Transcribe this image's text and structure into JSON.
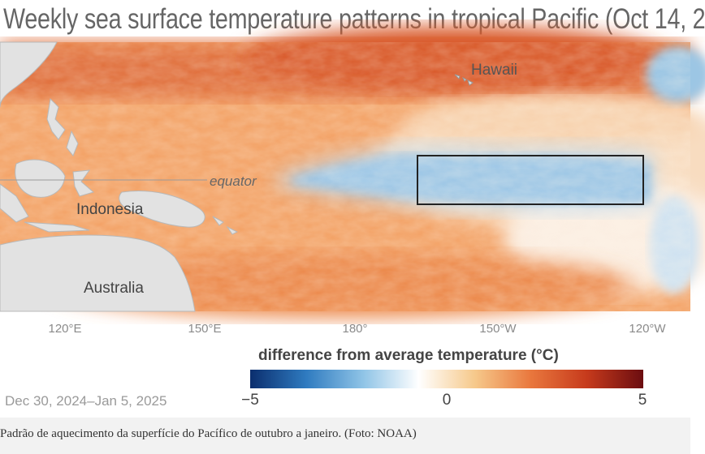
{
  "title": "Weekly sea surface temperature patterns in tropical Pacific (Oct 14, 2",
  "map": {
    "labels": {
      "hawaii": "Hawaii",
      "equator": "equator",
      "indonesia": "Indonesia",
      "australia": "Australia"
    },
    "longitude_ticks": [
      "120°E",
      "150°E",
      "180°",
      "150°W",
      "120°W"
    ]
  },
  "legend": {
    "title": "difference from average temperature (°C)",
    "min_label": "−5",
    "mid_label": "0",
    "max_label": "5",
    "colors": [
      "#0b2e6e",
      "#2f7bc0",
      "#8ec3e6",
      "#ffffff",
      "#f6c98b",
      "#e9773d",
      "#c63a1c",
      "#6b0d10"
    ]
  },
  "date_range": "Dec 30, 2024–Jan 5, 2025",
  "caption": "Padrão de aquecimento da superfície do Pacífico de outubro a janeiro. (Foto: NOAA)"
}
